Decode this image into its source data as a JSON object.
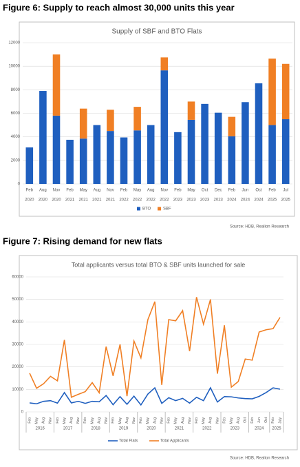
{
  "chart_data": [
    {
      "type": "bar",
      "figure_title": "Figure 6: Supply to reach almost 30,000 units this year",
      "title": "Supply of SBF and BTO Flats",
      "source": "Source: HDB, Realion Research",
      "stacked": true,
      "grid": true,
      "legend": "bottom",
      "categories": [
        [
          "Feb",
          "2020"
        ],
        [
          "Aug",
          "2020"
        ],
        [
          "Nov",
          "2020"
        ],
        [
          "Feb",
          "2021"
        ],
        [
          "May",
          "2021"
        ],
        [
          "Aug",
          "2021"
        ],
        [
          "Nov",
          "2021"
        ],
        [
          "Feb",
          "2022"
        ],
        [
          "May",
          "2022"
        ],
        [
          "Aug",
          "2022"
        ],
        [
          "Nov",
          "2022"
        ],
        [
          "Feb",
          "2023"
        ],
        [
          "May",
          "2023"
        ],
        [
          "Oct",
          "2023"
        ],
        [
          "Dec",
          "2023"
        ],
        [
          "Feb",
          "2024"
        ],
        [
          "Jun",
          "2024"
        ],
        [
          "Oct",
          "2024"
        ],
        [
          "Feb",
          "2025"
        ],
        [
          "Jul",
          "2025"
        ]
      ],
      "series": [
        {
          "name": "BTO",
          "color": "#1f5fbf",
          "values": [
            3100,
            7900,
            5800,
            3750,
            3850,
            5000,
            4500,
            3950,
            4550,
            5000,
            9650,
            4400,
            5450,
            6800,
            6050,
            4050,
            6950,
            8550,
            5000,
            5500
          ]
        },
        {
          "name": "SBF",
          "color": "#f07f24",
          "values": [
            0,
            0,
            5200,
            0,
            2550,
            0,
            1800,
            0,
            2000,
            0,
            1100,
            0,
            1550,
            0,
            0,
            1650,
            0,
            0,
            5650,
            4700
          ]
        }
      ],
      "ylim": [
        0,
        12000
      ],
      "yticks": [
        0,
        2000,
        4000,
        6000,
        8000,
        10000,
        12000
      ]
    },
    {
      "type": "line",
      "figure_title": "Figure 7: Rising demand for new flats",
      "title": "Total applicants versus total BTO & SBF units launched for sale",
      "source": "Source: HDB, Realion Research",
      "grid": true,
      "legend": "bottom",
      "categories": [
        "Feb",
        "May",
        "Aug",
        "Nov",
        "Feb",
        "May",
        "Aug",
        "Nov",
        "Feb",
        "May",
        "Aug",
        "Nov",
        "Feb",
        "May",
        "Aug",
        "Nov",
        "Feb",
        "May",
        "Aug",
        "Nov",
        "Feb",
        "May",
        "Aug",
        "Nov",
        "Feb",
        "May",
        "Aug",
        "Nov",
        "Feb",
        "May",
        "Aug",
        "Oct",
        "Feb",
        "Jun",
        "Oct",
        "Feb",
        "July"
      ],
      "year_groups": [
        {
          "label": "2016",
          "count": 4
        },
        {
          "label": "2017",
          "count": 4
        },
        {
          "label": "2018",
          "count": 4
        },
        {
          "label": "2019",
          "count": 4
        },
        {
          "label": "2020",
          "count": 4
        },
        {
          "label": "2021",
          "count": 4
        },
        {
          "label": "2022",
          "count": 4
        },
        {
          "label": "2023",
          "count": 4
        },
        {
          "label": "2024",
          "count": 3
        },
        {
          "label": "2025",
          "count": 2
        }
      ],
      "series": [
        {
          "name": "Total Flats",
          "color": "#1f5fbf",
          "values": [
            4000,
            3600,
            4700,
            5000,
            3900,
            8600,
            4000,
            4700,
            3800,
            4700,
            4500,
            7300,
            3200,
            6800,
            3400,
            7000,
            3100,
            7900,
            10700,
            3800,
            6300,
            5000,
            6000,
            3900,
            6500,
            5000,
            10700,
            4400,
            6800,
            6700,
            6200,
            5900,
            5800,
            6900,
            8600,
            10700,
            10100
          ]
        },
        {
          "name": "Total Applicants",
          "color": "#f07f24",
          "values": [
            17200,
            10500,
            12500,
            15800,
            13800,
            32000,
            6500,
            7800,
            9000,
            13000,
            8500,
            29000,
            16000,
            30000,
            7000,
            31500,
            24000,
            41000,
            49000,
            12000,
            41000,
            40500,
            45000,
            27000,
            51000,
            39000,
            50000,
            17000,
            38500,
            11000,
            13500,
            23500,
            23000,
            35500,
            36500,
            37000,
            42000
          ]
        }
      ],
      "ylim": [
        0,
        60000
      ],
      "yticks": [
        0,
        10000,
        20000,
        30000,
        40000,
        50000,
        60000
      ]
    }
  ]
}
